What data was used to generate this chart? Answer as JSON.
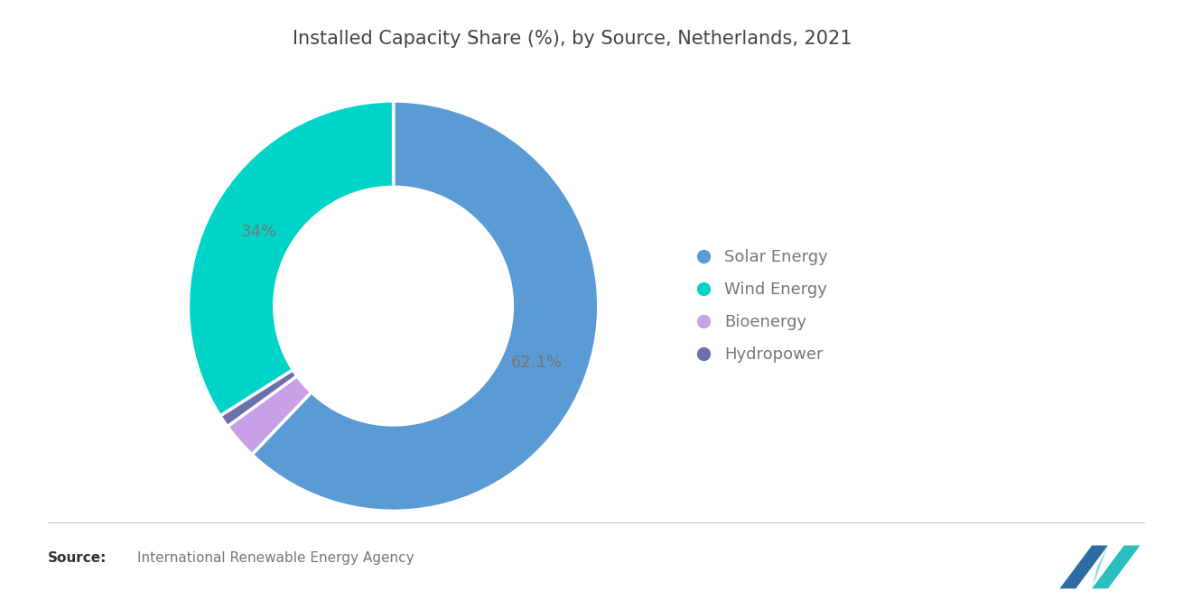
{
  "title": "Installed Capacity Share (%), by Source, Netherlands, 2021",
  "slices": [
    62.1,
    2.9,
    1.0,
    34.0
  ],
  "labels": [
    "Solar Energy",
    "Wind Energy",
    "Bioenergy",
    "Hydropower"
  ],
  "legend_order": [
    0,
    3,
    1,
    2
  ],
  "colors": [
    "#5B9BD5",
    "#C8A0E8",
    "#6B6FAA",
    "#00D4C8"
  ],
  "label_texts": [
    "62.1%",
    "",
    "",
    "34%"
  ],
  "label_radii": [
    0.75,
    0,
    0,
    0.75
  ],
  "source_bold": "Source:",
  "source_normal": "  International Renewable Energy Agency",
  "background_color": "#FFFFFF",
  "text_color": "#777777",
  "title_color": "#444444",
  "legend_fontsize": 13,
  "title_fontsize": 15
}
